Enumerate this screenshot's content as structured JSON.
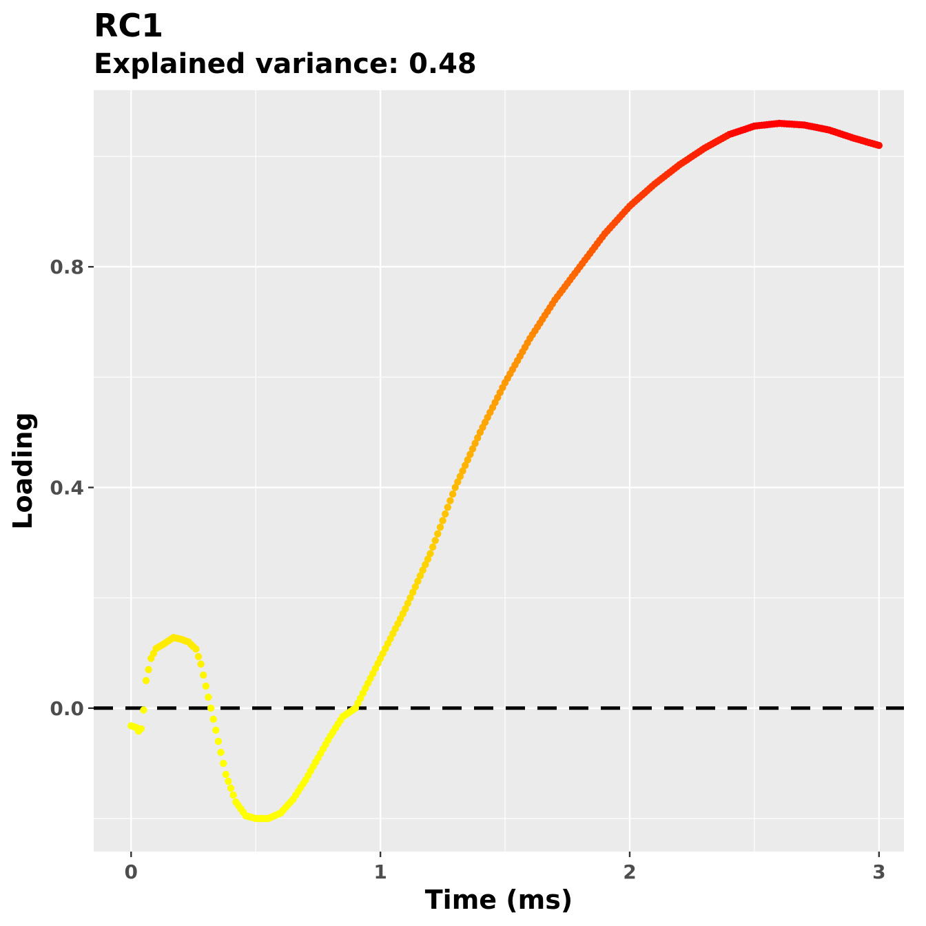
{
  "chart_data": {
    "type": "scatter",
    "title": "RC1",
    "subtitle": "Explained variance: 0.48",
    "xlabel": "Time (ms)",
    "ylabel": "Loading",
    "xlim": [
      -0.15,
      3.1
    ],
    "ylim": [
      -0.26,
      1.12
    ],
    "x_ticks": [
      {
        "value": 0,
        "label": "0"
      },
      {
        "value": 1,
        "label": "1"
      },
      {
        "value": 2,
        "label": "2"
      },
      {
        "value": 3,
        "label": "3"
      }
    ],
    "y_ticks": [
      {
        "value": 0.0,
        "label": "0.0"
      },
      {
        "value": 0.4,
        "label": "0.4"
      },
      {
        "value": 0.8,
        "label": "0.8"
      }
    ],
    "reference_line": {
      "y": 0,
      "style": "dashed",
      "color": "#000000"
    },
    "grid": true,
    "background": "#ebebeb",
    "color_scale": {
      "low": "#ffff00",
      "mid": "#ff8c00",
      "high": "#ff0000"
    },
    "anchors": [
      [
        0.0,
        -0.032
      ],
      [
        0.02,
        -0.035
      ],
      [
        0.035,
        -0.045
      ],
      [
        0.045,
        -0.03
      ],
      [
        0.06,
        0.05
      ],
      [
        0.08,
        0.09
      ],
      [
        0.1,
        0.108
      ],
      [
        0.13,
        0.116
      ],
      [
        0.17,
        0.128
      ],
      [
        0.2,
        0.125
      ],
      [
        0.23,
        0.12
      ],
      [
        0.26,
        0.107
      ],
      [
        0.28,
        0.08
      ],
      [
        0.3,
        0.04
      ],
      [
        0.32,
        0.0
      ],
      [
        0.35,
        -0.06
      ],
      [
        0.38,
        -0.12
      ],
      [
        0.42,
        -0.17
      ],
      [
        0.46,
        -0.195
      ],
      [
        0.5,
        -0.2
      ],
      [
        0.55,
        -0.2
      ],
      [
        0.6,
        -0.19
      ],
      [
        0.65,
        -0.165
      ],
      [
        0.7,
        -0.13
      ],
      [
        0.75,
        -0.09
      ],
      [
        0.8,
        -0.05
      ],
      [
        0.85,
        -0.015
      ],
      [
        0.9,
        0.0
      ],
      [
        0.95,
        0.045
      ],
      [
        1.0,
        0.09
      ],
      [
        1.1,
        0.18
      ],
      [
        1.2,
        0.28
      ],
      [
        1.3,
        0.4
      ],
      [
        1.4,
        0.5
      ],
      [
        1.5,
        0.59
      ],
      [
        1.6,
        0.67
      ],
      [
        1.7,
        0.74
      ],
      [
        1.8,
        0.8
      ],
      [
        1.9,
        0.86
      ],
      [
        2.0,
        0.91
      ],
      [
        2.1,
        0.95
      ],
      [
        2.2,
        0.985
      ],
      [
        2.3,
        1.015
      ],
      [
        2.4,
        1.04
      ],
      [
        2.5,
        1.055
      ],
      [
        2.6,
        1.06
      ],
      [
        2.7,
        1.057
      ],
      [
        2.8,
        1.048
      ],
      [
        2.9,
        1.033
      ],
      [
        3.0,
        1.02
      ]
    ]
  }
}
